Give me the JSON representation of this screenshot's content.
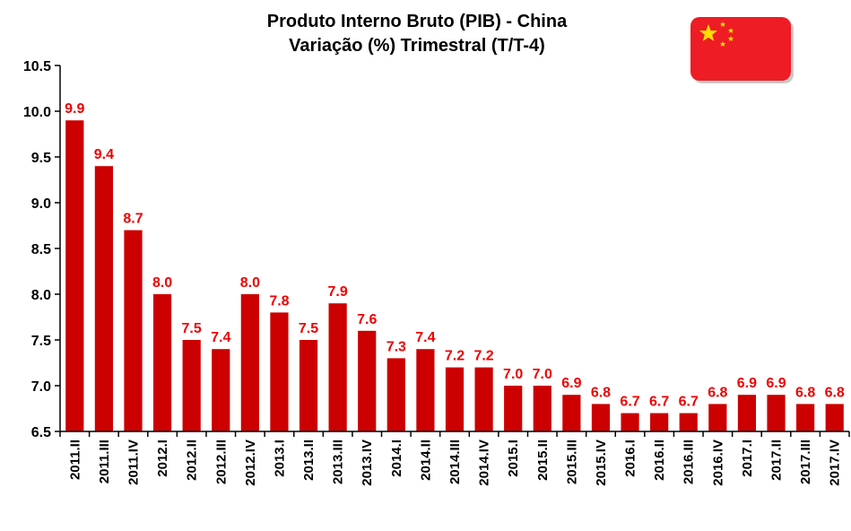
{
  "chart_data": {
    "type": "bar",
    "title": "Produto Interno Bruto (PIB) - China",
    "subtitle": "Variação (%) Trimestral (T/T-4)",
    "categories": [
      "2011.II",
      "2011.III",
      "2011.IV",
      "2012.I",
      "2012.II",
      "2012.III",
      "2012.IV",
      "2013.I",
      "2013.II",
      "2013.III",
      "2013.IV",
      "2014.I",
      "2014.II",
      "2014.III",
      "2014.IV",
      "2015.I",
      "2015.II",
      "2015.III",
      "2015.IV",
      "2016.I",
      "2016.II",
      "2016.III",
      "2016.IV",
      "2017.I",
      "2017.II",
      "2017.III",
      "2017.IV"
    ],
    "values": [
      9.9,
      9.4,
      8.7,
      8.0,
      7.5,
      7.4,
      8.0,
      7.8,
      7.5,
      7.9,
      7.6,
      7.3,
      7.4,
      7.2,
      7.2,
      7.0,
      7.0,
      6.9,
      6.8,
      6.7,
      6.7,
      6.7,
      6.8,
      6.9,
      6.9,
      6.8,
      6.8
    ],
    "data_labels": [
      "9.9",
      "9.4",
      "8.7",
      "8.0",
      "7.5",
      "7.4",
      "8.0",
      "7.8",
      "7.5",
      "7.9",
      "7.6",
      "7.3",
      "7.4",
      "7.2",
      "7.2",
      "7.0",
      "7.0",
      "6.9",
      "6.8",
      "6.7",
      "6.7",
      "6.7",
      "6.8",
      "6.9",
      "6.9",
      "6.8",
      "6.8"
    ],
    "ylim": [
      6.5,
      10.5
    ],
    "yticks": [
      "10.5",
      "10.0",
      "9.5",
      "9.0",
      "8.5",
      "8.0",
      "7.5",
      "7.0",
      "6.5"
    ],
    "ytick_values": [
      10.5,
      10.0,
      9.5,
      9.0,
      8.5,
      8.0,
      7.5,
      7.0,
      6.5
    ],
    "grid": false,
    "legend": "none",
    "bar_color": "#cc0000",
    "label_color": "#ee0000"
  },
  "flag": {
    "icon": "china-flag-icon",
    "background": "#ee1c25",
    "star_color": "#ffde00"
  }
}
